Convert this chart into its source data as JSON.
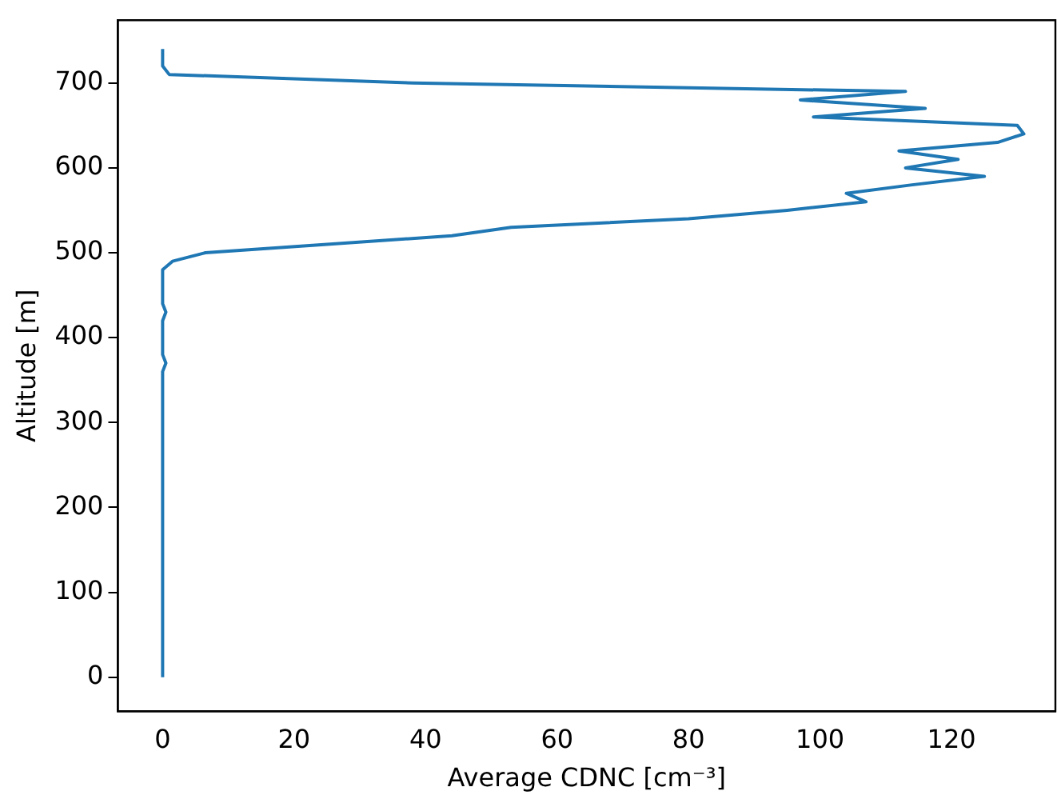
{
  "chart_data": {
    "type": "line",
    "xlabel": "Average CDNC [cm⁻³]",
    "ylabel": "Altitude [m]",
    "x": [
      0,
      0,
      0,
      0,
      0,
      0,
      0,
      0,
      0,
      0,
      0,
      0,
      0,
      0,
      0,
      0,
      0,
      0,
      0,
      0,
      0,
      0,
      0,
      0,
      0,
      0,
      0,
      0,
      0,
      0,
      0,
      0,
      0,
      0,
      0,
      0,
      0,
      0.5,
      0,
      0,
      0,
      0,
      0,
      0.5,
      0,
      0,
      0,
      0,
      0,
      1.5,
      6.5,
      25,
      44,
      53,
      80,
      95,
      107,
      104,
      114,
      125,
      113,
      121,
      112,
      127,
      131,
      130,
      99,
      116,
      97,
      113,
      38,
      1,
      0,
      0,
      0
    ],
    "series": [
      {
        "color": "#1f77b4",
        "values": [
          0,
          10,
          20,
          30,
          40,
          50,
          60,
          70,
          80,
          90,
          100,
          110,
          120,
          130,
          140,
          150,
          160,
          170,
          180,
          190,
          200,
          210,
          220,
          230,
          240,
          250,
          260,
          270,
          280,
          290,
          300,
          310,
          320,
          330,
          340,
          350,
          360,
          370,
          380,
          390,
          400,
          410,
          420,
          430,
          440,
          450,
          460,
          470,
          480,
          490,
          500,
          510,
          520,
          530,
          540,
          550,
          560,
          570,
          580,
          590,
          600,
          610,
          620,
          630,
          640,
          650,
          660,
          670,
          680,
          690,
          700,
          710,
          720,
          730,
          740
        ]
      }
    ],
    "xlim": [
      -6.8,
      135.8
    ],
    "ylim": [
      -40,
      774
    ],
    "xticks": [
      0,
      20,
      40,
      60,
      80,
      100,
      120
    ],
    "yticks": [
      0,
      100,
      200,
      300,
      400,
      500,
      600,
      700
    ],
    "grid": false,
    "legend": false,
    "marker": "none",
    "line_style": "solid"
  }
}
